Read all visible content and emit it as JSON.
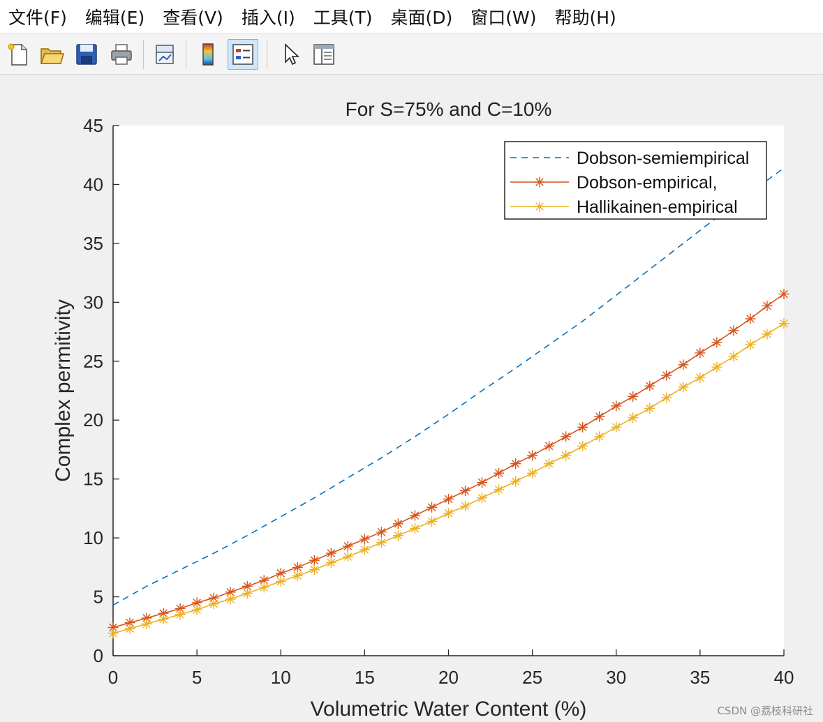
{
  "menu": [
    "文件(F)",
    "编辑(E)",
    "查看(V)",
    "插入(I)",
    "工具(T)",
    "桌面(D)",
    "窗口(W)",
    "帮助(H)"
  ],
  "toolbar": {
    "buttons": [
      {
        "name": "new-figure-icon"
      },
      {
        "name": "open-file-icon"
      },
      {
        "name": "save-icon"
      },
      {
        "name": "print-icon"
      },
      {
        "name": "link-plot-icon"
      },
      {
        "name": "insert-colorbar-icon"
      },
      {
        "name": "insert-legend-icon",
        "active": true
      },
      {
        "name": "edit-plot-pointer-icon"
      },
      {
        "name": "property-inspector-icon"
      }
    ]
  },
  "watermark": "CSDN @荔枝科研社",
  "chart_data": {
    "type": "line",
    "title": "For S=75% and C=10%",
    "xlabel": "Volumetric Water Content (%)",
    "ylabel": "Complex permitivity",
    "xlim": [
      0,
      40
    ],
    "ylim": [
      0,
      45
    ],
    "xticks": [
      0,
      5,
      10,
      15,
      20,
      25,
      30,
      35,
      40
    ],
    "yticks": [
      0,
      5,
      10,
      15,
      20,
      25,
      30,
      35,
      40,
      45
    ],
    "grid": false,
    "legend_position": "top-right",
    "colors": {
      "semiempirical": "#0072BD",
      "dobson": "#D95319",
      "hallikainen": "#EDB120"
    },
    "series": [
      {
        "name": "Dobson-semiempirical",
        "style": "dashed",
        "marker": "none",
        "color": "#0072BD",
        "x": [
          0,
          2,
          4,
          6,
          8,
          10,
          12,
          14,
          16,
          18,
          20,
          22,
          24,
          26,
          28,
          30,
          32,
          34,
          36,
          38,
          40
        ],
        "y": [
          4.3,
          5.9,
          7.3,
          8.7,
          10.2,
          11.8,
          13.4,
          15.1,
          16.8,
          18.6,
          20.5,
          22.5,
          24.4,
          26.4,
          28.4,
          30.6,
          32.8,
          35.0,
          37.2,
          39.3,
          41.4
        ]
      },
      {
        "name": "Dobson-empirical,",
        "style": "solid",
        "marker": "star",
        "color": "#D95319",
        "x": [
          0,
          1,
          2,
          3,
          4,
          5,
          6,
          7,
          8,
          9,
          10,
          11,
          12,
          13,
          14,
          15,
          16,
          17,
          18,
          19,
          20,
          21,
          22,
          23,
          24,
          25,
          26,
          27,
          28,
          29,
          30,
          31,
          32,
          33,
          34,
          35,
          36,
          37,
          38,
          39,
          40
        ],
        "y": [
          2.4,
          2.8,
          3.2,
          3.6,
          4.0,
          4.5,
          4.9,
          5.4,
          5.9,
          6.4,
          7.0,
          7.5,
          8.1,
          8.7,
          9.3,
          9.9,
          10.5,
          11.2,
          11.9,
          12.6,
          13.3,
          14.0,
          14.7,
          15.5,
          16.3,
          17.0,
          17.8,
          18.6,
          19.4,
          20.3,
          21.2,
          22.0,
          22.9,
          23.8,
          24.7,
          25.7,
          26.6,
          27.6,
          28.6,
          29.7,
          30.7
        ]
      },
      {
        "name": "Hallikainen-empirical",
        "style": "solid",
        "marker": "star",
        "color": "#EDB120",
        "x": [
          0,
          1,
          2,
          3,
          4,
          5,
          6,
          7,
          8,
          9,
          10,
          11,
          12,
          13,
          14,
          15,
          16,
          17,
          18,
          19,
          20,
          21,
          22,
          23,
          24,
          25,
          26,
          27,
          28,
          29,
          30,
          31,
          32,
          33,
          34,
          35,
          36,
          37,
          38,
          39,
          40
        ],
        "y": [
          1.9,
          2.3,
          2.7,
          3.1,
          3.5,
          3.9,
          4.4,
          4.8,
          5.3,
          5.8,
          6.3,
          6.8,
          7.3,
          7.9,
          8.4,
          9.0,
          9.6,
          10.2,
          10.8,
          11.4,
          12.1,
          12.7,
          13.4,
          14.1,
          14.8,
          15.5,
          16.3,
          17.0,
          17.8,
          18.6,
          19.4,
          20.2,
          21.0,
          21.9,
          22.8,
          23.6,
          24.5,
          25.4,
          26.4,
          27.3,
          28.2
        ]
      }
    ]
  }
}
